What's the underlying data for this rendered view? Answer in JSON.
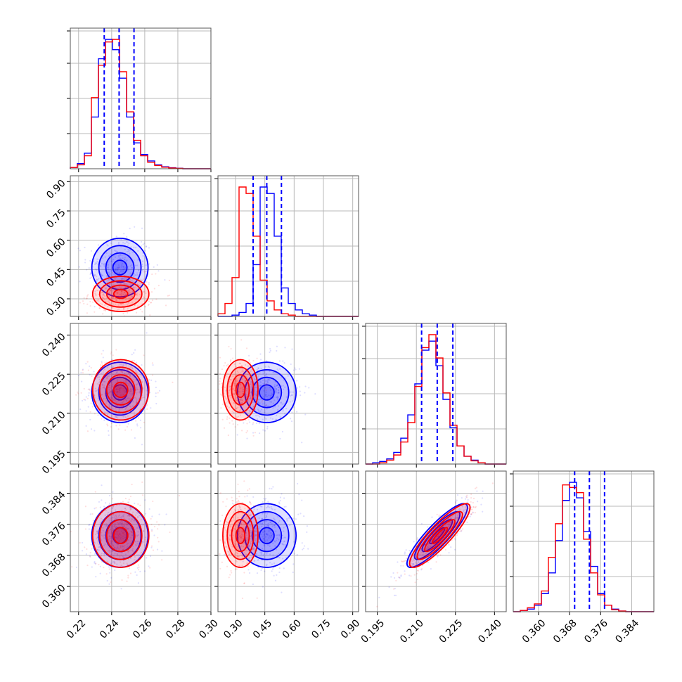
{
  "colors": {
    "series_a": "#0000ff",
    "series_b": "#ff0000",
    "grid": "#b8b8b8"
  },
  "chart_data": {
    "type": "corner",
    "grid": true,
    "parameters": [
      {
        "range": [
          0.215,
          0.3
        ],
        "ticks": [
          0.22,
          0.24,
          0.26,
          0.28,
          0.3
        ],
        "tick_labels": [
          "0.22",
          "0.24",
          "0.26",
          "0.28",
          "0.30"
        ]
      },
      {
        "range": [
          0.21,
          0.93
        ],
        "ticks": [
          0.3,
          0.45,
          0.6,
          0.75,
          0.9
        ],
        "tick_labels": [
          "0.30",
          "0.45",
          "0.60",
          "0.75",
          "0.90"
        ]
      },
      {
        "range": [
          0.1905,
          0.2445
        ],
        "ticks": [
          0.195,
          0.21,
          0.225,
          0.24
        ],
        "tick_labels": [
          "0.195",
          "0.210",
          "0.225",
          "0.240"
        ]
      },
      {
        "range": [
          0.3535,
          0.3897
        ],
        "ticks": [
          0.36,
          0.368,
          0.376,
          0.384
        ],
        "tick_labels": [
          "0.360",
          "0.368",
          "0.376",
          "0.384"
        ]
      }
    ],
    "series": [
      {
        "color": "#0000ff",
        "means": [
          0.245,
          0.46,
          0.218,
          0.3731
        ],
        "sigmas": [
          0.0085,
          0.075,
          0.0058,
          0.0041
        ],
        "corr": [
          [
            1,
            0,
            0,
            0
          ],
          [
            0,
            1,
            0,
            0
          ],
          [
            0,
            0,
            1,
            0.88
          ],
          [
            0,
            0,
            0.88,
            1
          ]
        ],
        "quantiles": [
          [
            0.2355,
            0.2445,
            0.2535
          ],
          [
            0.39,
            0.46,
            0.535
          ],
          [
            0.212,
            0.218,
            0.224
          ],
          [
            0.3693,
            0.3731,
            0.377
          ]
        ],
        "hist_counts": [
          [
            1,
            4,
            12,
            40,
            85,
            100,
            92,
            70,
            40,
            20,
            11,
            6,
            3,
            1.5,
            0.8,
            0.4,
            0,
            0,
            0,
            0
          ],
          [
            0,
            0,
            1,
            3,
            10,
            40,
            100,
            95,
            62,
            22,
            10,
            5,
            2,
            1,
            0,
            0,
            0,
            0,
            0,
            0
          ],
          [
            0,
            1,
            2,
            4,
            9,
            20,
            38,
            62,
            88,
            95,
            76,
            50,
            28,
            14,
            6,
            3,
            1,
            0,
            0,
            0
          ],
          [
            0,
            1,
            2,
            5,
            14,
            30,
            55,
            86,
            100,
            88,
            62,
            35,
            14,
            5,
            2,
            0.5,
            0,
            0,
            0,
            0
          ]
        ]
      },
      {
        "color": "#ff0000",
        "means": [
          0.2455,
          0.325,
          0.219,
          0.3731
        ],
        "sigmas": [
          0.0085,
          0.045,
          0.0058,
          0.0041
        ],
        "corr": [
          [
            1,
            0,
            0,
            0
          ],
          [
            0,
            1,
            0,
            0
          ],
          [
            0,
            0,
            1,
            0.88
          ],
          [
            0,
            0,
            0.88,
            1
          ]
        ],
        "quantiles": [
          [
            0.2355,
            0.2445,
            0.2535
          ],
          [
            0.39,
            0.46,
            0.535
          ],
          [
            0.212,
            0.218,
            0.224
          ],
          [
            0.3693,
            0.3731,
            0.377
          ]
        ],
        "hist_counts": [
          [
            1,
            3,
            10,
            55,
            80,
            98,
            100,
            75,
            44,
            22,
            10,
            5,
            2.5,
            1.2,
            0.6,
            0.3,
            0,
            0,
            0,
            0
          ],
          [
            2,
            10,
            30,
            100,
            95,
            62,
            28,
            12,
            5,
            2,
            1,
            0,
            0,
            0,
            0,
            0,
            0,
            0,
            0,
            0
          ],
          [
            0,
            0,
            1,
            3,
            7,
            17,
            32,
            60,
            90,
            100,
            82,
            55,
            30,
            14,
            6,
            2.5,
            1,
            0,
            0,
            0
          ],
          [
            0,
            1,
            3,
            6,
            16,
            42,
            68,
            98,
            96,
            92,
            56,
            30,
            13,
            5,
            1.5,
            0.5,
            0,
            0,
            0,
            0
          ]
        ]
      }
    ]
  }
}
